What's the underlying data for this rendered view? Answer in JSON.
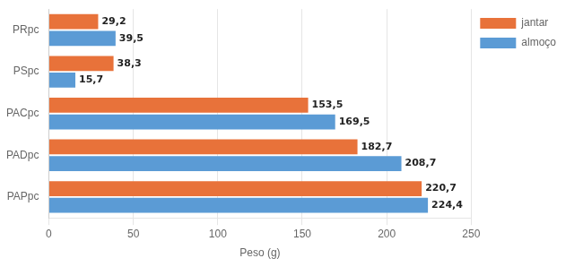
{
  "chart_data": {
    "type": "bar",
    "orientation": "horizontal",
    "categories": [
      "PAPpc",
      "PADpc",
      "PACpc",
      "PSpc",
      "PRpc"
    ],
    "series": [
      {
        "name": "jantar",
        "color": "#E8723A",
        "values": [
          220.7,
          182.7,
          153.5,
          38.3,
          29.2
        ],
        "value_labels": [
          "220,7",
          "182,7",
          "153,5",
          "38,3",
          "29,2"
        ]
      },
      {
        "name": "almoço",
        "color": "#5B9BD5",
        "values": [
          224.4,
          208.7,
          169.5,
          15.7,
          39.5
        ],
        "value_labels": [
          "224,4",
          "208,7",
          "169,5",
          "15,7",
          "39,5"
        ]
      }
    ],
    "xlabel": "Peso (g)",
    "xlim": [
      0,
      250
    ],
    "xticks": [
      0,
      50,
      100,
      150,
      200,
      250
    ],
    "grid": true,
    "legend": "right",
    "data_labels": true
  }
}
